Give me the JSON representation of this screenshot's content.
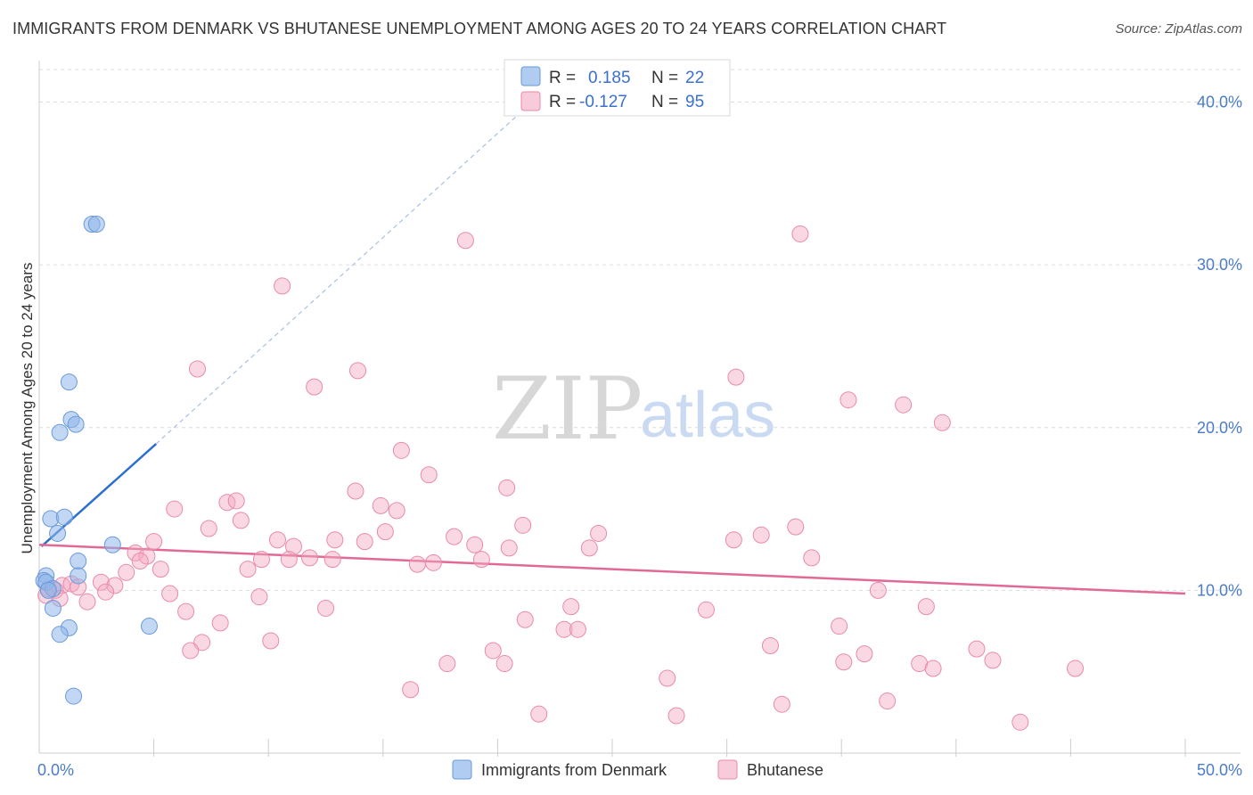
{
  "title": "IMMIGRANTS FROM DENMARK VS BHUTANESE UNEMPLOYMENT AMONG AGES 20 TO 24 YEARS CORRELATION CHART",
  "source": "Source: ZipAtlas.com",
  "watermark": {
    "part1": "ZIP",
    "part2": "atlas"
  },
  "colors": {
    "blue": "#8fb6ea",
    "blue_stroke": "#6a9ad8",
    "blue_line": "#2d6fce",
    "pink": "#f4a9c2",
    "pink_stroke": "#e98aab",
    "pink_line": "#e06a95",
    "tick_text": "#4a7cc7",
    "grid": "#dcdcdc"
  },
  "legend": {
    "r_label": "R =",
    "n_label": "N =",
    "series1": {
      "r": "0.185",
      "n": "22"
    },
    "series2": {
      "r": "-0.127",
      "n": "95"
    }
  },
  "chart_data": {
    "type": "scatter",
    "ylabel": "Unemployment Among Ages 20 to 24 years",
    "xlim": [
      0,
      50
    ],
    "ylim": [
      0,
      42
    ],
    "x_tick_labels": [
      "0.0%",
      "50.0%"
    ],
    "y_ticks": [
      10,
      20,
      30,
      40
    ],
    "y_tick_labels": [
      "10.0%",
      "20.0%",
      "30.0%",
      "40.0%"
    ],
    "series": [
      {
        "name": "Immigrants from Denmark",
        "trend": {
          "x_start": 0.1,
          "y_start": 12.7,
          "x_end": 5.1,
          "y_end": 19.0,
          "dash_x_end": 21.5,
          "dash_y_end": 40.0
        },
        "points": [
          [
            2.3,
            32.5
          ],
          [
            2.5,
            32.5
          ],
          [
            1.3,
            22.8
          ],
          [
            1.4,
            20.5
          ],
          [
            1.6,
            20.2
          ],
          [
            0.9,
            19.7
          ],
          [
            0.5,
            14.4
          ],
          [
            1.1,
            14.5
          ],
          [
            0.8,
            13.5
          ],
          [
            3.2,
            12.8
          ],
          [
            1.7,
            11.8
          ],
          [
            0.3,
            10.9
          ],
          [
            1.7,
            10.9
          ],
          [
            0.2,
            10.6
          ],
          [
            0.3,
            10.5
          ],
          [
            0.6,
            10.1
          ],
          [
            0.4,
            10.0
          ],
          [
            0.6,
            8.9
          ],
          [
            1.3,
            7.7
          ],
          [
            4.8,
            7.8
          ],
          [
            0.9,
            7.3
          ],
          [
            1.5,
            3.5
          ]
        ]
      },
      {
        "name": "Bhutanese",
        "trend": {
          "x_start": 0.0,
          "y_start": 12.8,
          "x_end": 50.0,
          "y_end": 9.8
        },
        "points": [
          [
            18.6,
            31.5
          ],
          [
            10.6,
            28.7
          ],
          [
            33.2,
            31.9
          ],
          [
            6.9,
            23.6
          ],
          [
            13.9,
            23.5
          ],
          [
            12.0,
            22.5
          ],
          [
            30.4,
            23.1
          ],
          [
            35.3,
            21.7
          ],
          [
            37.7,
            21.4
          ],
          [
            39.4,
            20.3
          ],
          [
            15.8,
            18.6
          ],
          [
            17.0,
            17.1
          ],
          [
            13.8,
            16.1
          ],
          [
            20.4,
            16.3
          ],
          [
            8.2,
            15.4
          ],
          [
            8.6,
            15.5
          ],
          [
            5.9,
            15.0
          ],
          [
            14.9,
            15.2
          ],
          [
            15.6,
            14.9
          ],
          [
            8.8,
            14.3
          ],
          [
            21.1,
            14.0
          ],
          [
            33.0,
            13.9
          ],
          [
            7.4,
            13.8
          ],
          [
            15.1,
            13.6
          ],
          [
            24.4,
            13.5
          ],
          [
            31.5,
            13.4
          ],
          [
            5.0,
            13.0
          ],
          [
            10.4,
            13.1
          ],
          [
            12.9,
            13.1
          ],
          [
            14.2,
            13.0
          ],
          [
            18.1,
            13.3
          ],
          [
            30.3,
            13.1
          ],
          [
            11.1,
            12.7
          ],
          [
            19.0,
            12.8
          ],
          [
            20.5,
            12.6
          ],
          [
            24.0,
            12.6
          ],
          [
            4.2,
            12.3
          ],
          [
            4.7,
            12.1
          ],
          [
            9.7,
            11.9
          ],
          [
            10.9,
            11.9
          ],
          [
            11.8,
            12.0
          ],
          [
            12.8,
            11.9
          ],
          [
            19.3,
            11.9
          ],
          [
            33.7,
            12.0
          ],
          [
            16.5,
            11.6
          ],
          [
            17.2,
            11.7
          ],
          [
            4.4,
            11.8
          ],
          [
            5.3,
            11.3
          ],
          [
            9.1,
            11.3
          ],
          [
            3.8,
            11.1
          ],
          [
            1.0,
            10.3
          ],
          [
            1.4,
            10.4
          ],
          [
            2.7,
            10.5
          ],
          [
            3.3,
            10.3
          ],
          [
            0.4,
            10.1
          ],
          [
            1.7,
            10.2
          ],
          [
            0.7,
            10.0
          ],
          [
            2.9,
            9.9
          ],
          [
            0.3,
            9.7
          ],
          [
            0.9,
            9.5
          ],
          [
            2.1,
            9.3
          ],
          [
            5.7,
            9.8
          ],
          [
            9.6,
            9.6
          ],
          [
            23.2,
            9.0
          ],
          [
            36.6,
            10.0
          ],
          [
            38.7,
            9.0
          ],
          [
            12.5,
            8.9
          ],
          [
            29.1,
            8.8
          ],
          [
            6.4,
            8.7
          ],
          [
            7.9,
            8.0
          ],
          [
            21.2,
            8.2
          ],
          [
            34.9,
            7.8
          ],
          [
            22.9,
            7.6
          ],
          [
            23.5,
            7.6
          ],
          [
            7.1,
            6.8
          ],
          [
            10.1,
            6.9
          ],
          [
            6.6,
            6.3
          ],
          [
            19.8,
            6.3
          ],
          [
            31.9,
            6.6
          ],
          [
            40.9,
            6.4
          ],
          [
            35.1,
            5.6
          ],
          [
            36.0,
            6.1
          ],
          [
            17.8,
            5.5
          ],
          [
            20.3,
            5.5
          ],
          [
            38.4,
            5.5
          ],
          [
            39.0,
            5.2
          ],
          [
            41.6,
            5.7
          ],
          [
            45.2,
            5.2
          ],
          [
            27.4,
            4.6
          ],
          [
            16.2,
            3.9
          ],
          [
            32.4,
            3.0
          ],
          [
            37.0,
            3.2
          ],
          [
            21.8,
            2.4
          ],
          [
            27.8,
            2.3
          ],
          [
            42.8,
            1.9
          ]
        ]
      }
    ]
  }
}
